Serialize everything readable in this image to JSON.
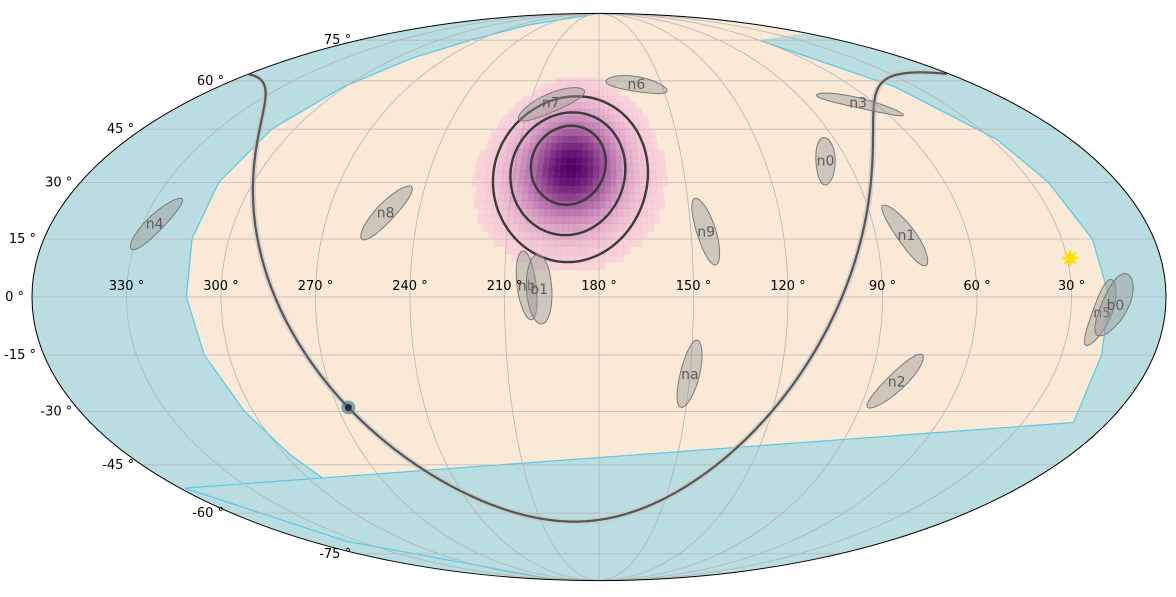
{
  "chart_data": {
    "type": "skymap",
    "projection": "mollweide",
    "coordinate_system": "equatorial",
    "ra_axis_direction": "increasing-left",
    "grid": true,
    "colors": {
      "background": "#fae9d7",
      "earth_occultation": "#b9dde0",
      "earth_occultation_edge": "#5bc9e4",
      "detector_fill": "#9a9a9a",
      "probability_map": "#6d0b70",
      "contour": "#3a3a3a",
      "galactic_plane": "#555555",
      "sun": "#ffe000",
      "galactic_center": "#3d6f80"
    },
    "ra_ticks": [
      {
        "ra": 330,
        "label": "330$^\\circ$",
        "text": "330 °"
      },
      {
        "ra": 300,
        "label": "300°",
        "text": "300 °"
      },
      {
        "ra": 270,
        "text": "270 °"
      },
      {
        "ra": 240,
        "text": "240 °"
      },
      {
        "ra": 210,
        "text": "210 °"
      },
      {
        "ra": 180,
        "text": "180 °"
      },
      {
        "ra": 150,
        "text": "150 °"
      },
      {
        "ra": 120,
        "text": "120 °"
      },
      {
        "ra": 90,
        "text": "90 °"
      },
      {
        "ra": 60,
        "text": "60 °"
      },
      {
        "ra": 30,
        "text": "30 °"
      }
    ],
    "dec_ticks": [
      {
        "dec": 75,
        "text": "75 °"
      },
      {
        "dec": 60,
        "text": "60 °"
      },
      {
        "dec": 45,
        "text": "45 °"
      },
      {
        "dec": 30,
        "text": "30 °"
      },
      {
        "dec": 15,
        "text": "15 °"
      },
      {
        "dec": 0,
        "text": "0 °"
      },
      {
        "dec": -15,
        "text": "-15 °"
      },
      {
        "dec": -30,
        "text": "-30 °"
      },
      {
        "dec": -45,
        "text": "-45 °"
      },
      {
        "dec": -60,
        "text": "-60 °"
      },
      {
        "dec": -75,
        "text": "-75 °"
      }
    ],
    "detectors": [
      {
        "name": "n0",
        "ra": 98,
        "dec": 36,
        "rx": 2.5,
        "ry": 7.5,
        "angle": 30
      },
      {
        "name": "n1",
        "ra": 80,
        "dec": 16,
        "rx": 3,
        "ry": 9,
        "angle": -30
      },
      {
        "name": "n2",
        "ra": 81,
        "dec": -22,
        "rx": 3,
        "ry": 9,
        "angle": 40
      },
      {
        "name": "n3",
        "ra": 67,
        "dec": 53,
        "rx": 2,
        "ry": 9,
        "angle": -71
      },
      {
        "name": "n4",
        "ra": 326,
        "dec": 19,
        "rx": 3,
        "ry": 8,
        "angle": 35
      },
      {
        "name": "n5",
        "ra": 20,
        "dec": -4,
        "rx": 3,
        "ry": 9,
        "angle": 20
      },
      {
        "name": "n6",
        "ra": 162,
        "dec": 59,
        "rx": 2.5,
        "ry": 7.5,
        "angle": -78
      },
      {
        "name": "n7",
        "ra": 201,
        "dec": 53,
        "rx": 3,
        "ry": 9,
        "angle": 60
      },
      {
        "name": "n8",
        "ra": 251,
        "dec": 22,
        "rx": 3,
        "ry": 9,
        "angle": 40
      },
      {
        "name": "n9",
        "ra": 145,
        "dec": 17,
        "rx": 3,
        "ry": 9,
        "angle": -15
      },
      {
        "name": "na",
        "ra": 150,
        "dec": -20,
        "rx": 3,
        "ry": 9,
        "angle": 10
      },
      {
        "name": "nb",
        "ra": 203,
        "dec": 3,
        "rx": 3,
        "ry": 9,
        "angle": -10
      },
      {
        "name": "b0",
        "ra": 16,
        "dec": -2,
        "rx": 4,
        "ry": 9,
        "angle": 30
      },
      {
        "name": "b1",
        "ra": 199,
        "dec": 2,
        "rx": 4,
        "ry": 9,
        "angle": -5
      }
    ],
    "probability_map": {
      "peak_ra": 190,
      "peak_dec": 34,
      "sigma_deg": 11
    },
    "confidence_contours": [
      {
        "level": "68%",
        "ra": 191,
        "dec": 35,
        "radius_deg": 11
      },
      {
        "level": "95%",
        "ra": 191,
        "dec": 33,
        "radius_deg": 17
      },
      {
        "level": "99.7%",
        "ra": 190,
        "dec": 32,
        "radius_deg": 23
      }
    ],
    "sun": {
      "ra": 29,
      "dec": 10
    },
    "galactic_center": {
      "ra": 266.4,
      "dec": -28.9
    }
  }
}
